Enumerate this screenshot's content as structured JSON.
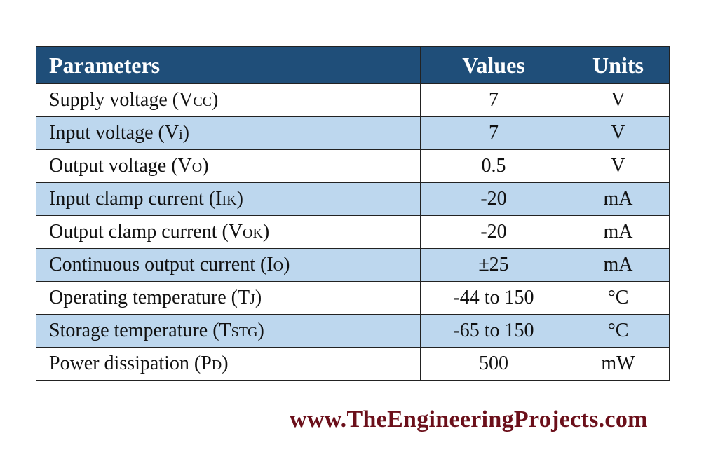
{
  "table": {
    "headers": [
      "Parameters",
      "Values",
      "Units"
    ],
    "rows": [
      {
        "param": "Supply voltage (V",
        "sub": "CC",
        "close": ")",
        "value": "7",
        "unit": "V"
      },
      {
        "param": "Input voltage (V",
        "sub": "i",
        "close": ")",
        "value": "7",
        "unit": "V"
      },
      {
        "param": "Output voltage (V",
        "sub": "O",
        "close": ")",
        "value": "0.5",
        "unit": "V"
      },
      {
        "param": "Input clamp current (I",
        "sub": "IK",
        "close": ")",
        "value": "-20",
        "unit": "mA"
      },
      {
        "param": "Output clamp current (V",
        "sub": "OK",
        "close": ")",
        "value": "-20",
        "unit": "mA"
      },
      {
        "param": "Continuous output current (I",
        "sub": "O",
        "close": ")",
        "value": "±25",
        "unit": "mA"
      },
      {
        "param": "Operating temperature (T",
        "sub": "J",
        "close": ")",
        "value": "-44 to 150",
        "unit": "°C"
      },
      {
        "param": "Storage temperature (T",
        "sub": "STG",
        "close": ")",
        "value": "-65 to 150",
        "unit": "°C"
      },
      {
        "param": "Power dissipation (P",
        "sub": "D",
        "close": ")",
        "value": "500",
        "unit": "mW"
      }
    ]
  },
  "colors": {
    "header_bg": "#1f4e79",
    "alt_row_bg": "#bdd7ee",
    "watermark": "#6b0f1a"
  },
  "watermark": "www.TheEngineeringProjects.com"
}
